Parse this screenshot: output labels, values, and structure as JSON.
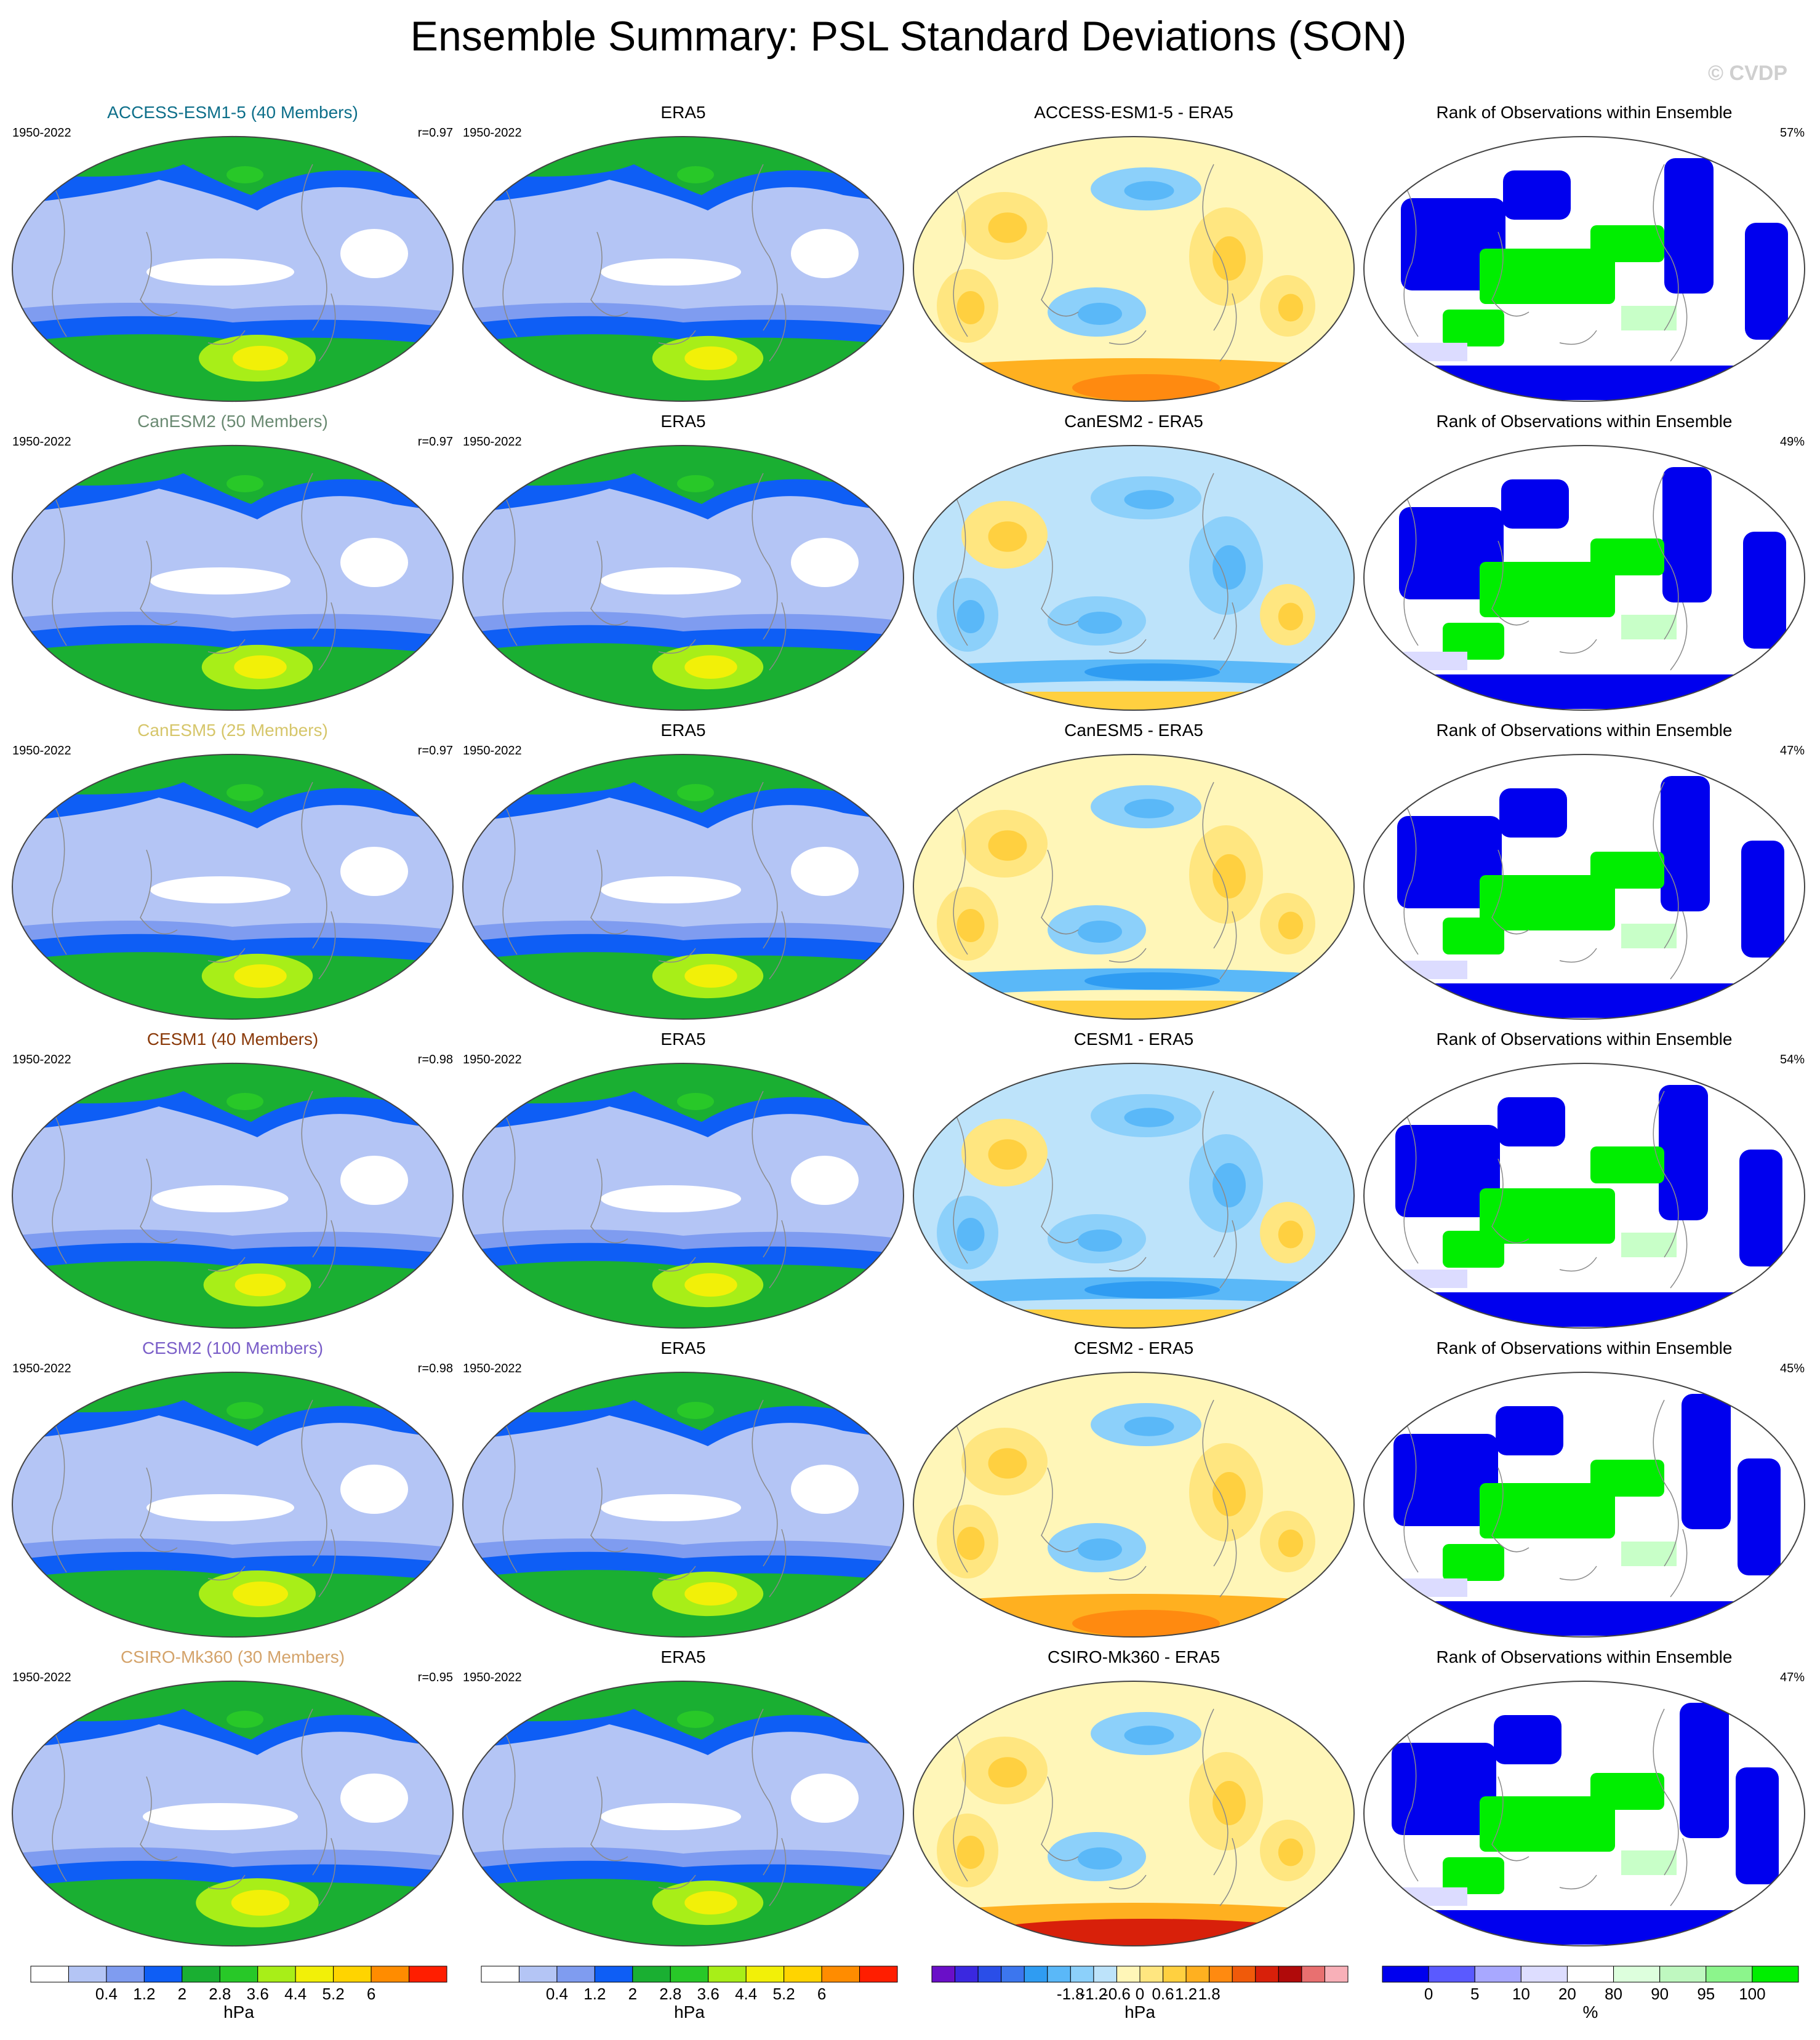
{
  "title": "Ensemble Summary: PSL Standard Deviations (SON)",
  "watermark": "© CVDP",
  "period": "1950-2022",
  "obs_name": "ERA5",
  "rank_title": "Rank of Observations within Ensemble",
  "rows": [
    {
      "model": "ACCESS-ESM1-5 (40 Members)",
      "model_color": "#0d6f8a",
      "r": "r=0.97",
      "diff_title": "ACCESS-ESM1-5 - ERA5",
      "rank_pct": "57%",
      "scheme": {
        "sd": 1.0,
        "diff": "warm",
        "rank": 1
      }
    },
    {
      "model": "CanESM2 (50 Members)",
      "model_color": "#6a8a72",
      "r": "r=0.97",
      "diff_title": "CanESM2 - ERA5",
      "rank_pct": "49%",
      "scheme": {
        "sd": 0.95,
        "diff": "cool",
        "rank": 2
      }
    },
    {
      "model": "CanESM5 (25 Members)",
      "model_color": "#d6c66a",
      "r": "r=0.97",
      "diff_title": "CanESM5 - ERA5",
      "rank_pct": "47%",
      "scheme": {
        "sd": 0.95,
        "diff": "mixed",
        "rank": 3
      }
    },
    {
      "model": "CESM1 (40 Members)",
      "model_color": "#8a3a0a",
      "r": "r=0.98",
      "diff_title": "CESM1 - ERA5",
      "rank_pct": "54%",
      "scheme": {
        "sd": 0.92,
        "diff": "cool",
        "rank": 4
      }
    },
    {
      "model": "CESM2 (100 Members)",
      "model_color": "#7a5ec8",
      "r": "r=0.98",
      "diff_title": "CESM2 - ERA5",
      "rank_pct": "45%",
      "scheme": {
        "sd": 1.0,
        "diff": "warm",
        "rank": 5
      }
    },
    {
      "model": "CSIRO-Mk360 (30 Members)",
      "model_color": "#d4a36a",
      "r": "r=0.95",
      "diff_title": "CSIRO-Mk360 - ERA5",
      "rank_pct": "47%",
      "scheme": {
        "sd": 1.05,
        "diff": "strong",
        "rank": 6
      }
    }
  ],
  "colorbars": [
    {
      "unit": "hPa",
      "labels": [
        "0.4",
        "1.2",
        "2",
        "2.8",
        "3.6",
        "4.4",
        "5.2",
        "6"
      ],
      "colors": [
        "#ffffff",
        "#b4c5f5",
        "#7f9cf0",
        "#0e5ef5",
        "#1aaf32",
        "#28c828",
        "#a8ee18",
        "#f2f008",
        "#ffd400",
        "#ff8c00",
        "#ff1e00"
      ]
    },
    {
      "unit": "hPa",
      "labels": [
        "0.4",
        "1.2",
        "2",
        "2.8",
        "3.6",
        "4.4",
        "5.2",
        "6"
      ],
      "colors": [
        "#ffffff",
        "#b4c5f5",
        "#7f9cf0",
        "#0e5ef5",
        "#1aaf32",
        "#28c828",
        "#a8ee18",
        "#f2f008",
        "#ffd400",
        "#ff8c00",
        "#ff1e00"
      ]
    },
    {
      "unit": "hPa",
      "labels": [
        "-1.8",
        "-1.2",
        "-0.6",
        "0",
        "0.6",
        "1.2",
        "1.8"
      ],
      "colors": [
        "#6a0fc8",
        "#3a28e0",
        "#2a4ee8",
        "#3c76ee",
        "#2f9cf2",
        "#5ab8f8",
        "#8cd0fa",
        "#bde3fa",
        "#fff6b8",
        "#ffe680",
        "#ffd040",
        "#ffb020",
        "#ff8a10",
        "#f05a0a",
        "#d8200a",
        "#b00a0a",
        "#e87070",
        "#f8b0b8"
      ]
    },
    {
      "unit": "%",
      "labels": [
        "0",
        "5",
        "10",
        "20",
        "80",
        "90",
        "95",
        "100"
      ],
      "colors": [
        "#0000ee",
        "#5a5aff",
        "#a8a8ff",
        "#ddddff",
        "#ffffff",
        "#ddffdd",
        "#bff8c0",
        "#8cf58c",
        "#00ee00"
      ]
    }
  ],
  "colors": {
    "sd": [
      "#ffffff",
      "#b4c5f5",
      "#7f9cf0",
      "#0e5ef5",
      "#1aaf32",
      "#28c828",
      "#a8ee18",
      "#f2f008"
    ],
    "diff_warm": [
      "#fff6b8",
      "#ffe680",
      "#ffd040",
      "#ffb020"
    ],
    "diff_cool": [
      "#bde3fa",
      "#8cd0fa",
      "#5ab8f8",
      "#2f9cf2"
    ],
    "diff_hot": [
      "#ff8a10",
      "#f05a0a",
      "#d8200a"
    ],
    "rank_blue": "#0000ee",
    "rank_lightblue": "#dcdcff",
    "rank_green": "#00ee00",
    "rank_lightgreen": "#c8ffc8"
  }
}
